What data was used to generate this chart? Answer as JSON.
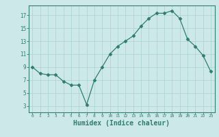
{
  "x": [
    0,
    1,
    2,
    3,
    4,
    5,
    6,
    7,
    8,
    9,
    10,
    11,
    12,
    13,
    14,
    15,
    16,
    17,
    18,
    19,
    20,
    21,
    22,
    23
  ],
  "y": [
    9,
    8,
    7.8,
    7.8,
    6.8,
    6.2,
    6.2,
    3.2,
    7,
    9,
    11,
    12.2,
    13,
    13.8,
    15.3,
    16.5,
    17.3,
    17.3,
    17.7,
    16.5,
    13.3,
    12.2,
    10.8,
    8.3
  ],
  "line_color": "#2e7d6e",
  "marker": "D",
  "marker_size": 2.5,
  "bg_color": "#cde8e8",
  "grid_color": "#b0d4d4",
  "tick_color": "#2e7d6e",
  "axis_color": "#2e7d6e",
  "xlabel": "Humidex (Indice chaleur)",
  "xlabel_fontsize": 7,
  "xlabel_color": "#2e7d6e",
  "yticks": [
    3,
    5,
    7,
    9,
    11,
    13,
    15,
    17
  ],
  "ylim": [
    2.0,
    18.5
  ],
  "xlim": [
    -0.5,
    23.5
  ],
  "xticks": [
    0,
    1,
    2,
    3,
    4,
    5,
    6,
    7,
    8,
    9,
    10,
    11,
    12,
    13,
    14,
    15,
    16,
    17,
    18,
    19,
    20,
    21,
    22,
    23
  ]
}
